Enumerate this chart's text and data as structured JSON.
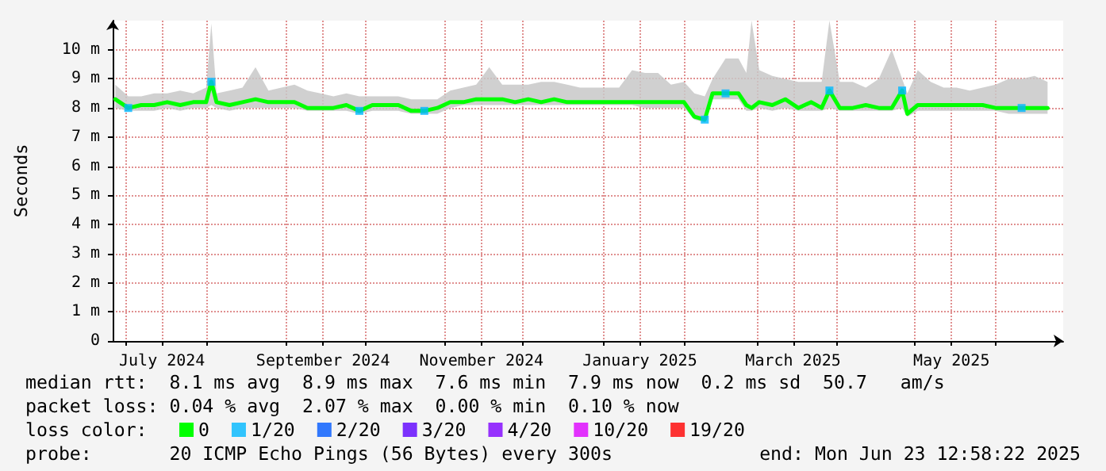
{
  "chart_data": {
    "type": "line",
    "ylabel": "Seconds",
    "legend_title": "loss color:",
    "legend": "bottom",
    "grid": true,
    "xlim": [
      "2024-06-26",
      "2025-06-27"
    ],
    "xticks": [
      {
        "value": "2024-07-01",
        "label": null
      },
      {
        "value": "2024-07-15",
        "label": "July 2024"
      },
      {
        "value": "2024-08-01",
        "label": null
      },
      {
        "value": "2024-09-01",
        "label": null
      },
      {
        "value": "2024-09-15",
        "label": "September 2024"
      },
      {
        "value": "2024-10-01",
        "label": null
      },
      {
        "value": "2024-11-01",
        "label": null
      },
      {
        "value": "2024-11-15",
        "label": "November 2024"
      },
      {
        "value": "2024-12-01",
        "label": null
      },
      {
        "value": "2025-01-01",
        "label": null
      },
      {
        "value": "2025-01-15",
        "label": "January 2025"
      },
      {
        "value": "2025-02-01",
        "label": null
      },
      {
        "value": "2025-03-01",
        "label": null
      },
      {
        "value": "2025-03-15",
        "label": "March 2025"
      },
      {
        "value": "2025-04-01",
        "label": null
      },
      {
        "value": "2025-05-01",
        "label": null
      },
      {
        "value": "2025-05-15",
        "label": "May 2025"
      },
      {
        "value": "2025-06-01",
        "label": null
      }
    ],
    "ylim": [
      0,
      11
    ],
    "yticks": [
      0,
      {
        "value": 1,
        "label": "1 m"
      },
      {
        "value": 2,
        "label": "2 m"
      },
      {
        "value": 3,
        "label": "3 m"
      },
      {
        "value": 4,
        "label": "4 m"
      },
      {
        "value": 5,
        "label": "5 m"
      },
      {
        "value": 6,
        "label": "6 m"
      },
      {
        "value": 7,
        "label": "7 m"
      },
      {
        "value": 8,
        "label": "8 m"
      },
      {
        "value": 9,
        "label": "9 m"
      },
      {
        "value": 10,
        "label": "10 m"
      }
    ],
    "x": [
      "2024-06-27",
      "2024-07-02",
      "2024-07-07",
      "2024-07-12",
      "2024-07-17",
      "2024-07-22",
      "2024-07-27",
      "2024-08-01",
      "2024-08-03",
      "2024-08-05",
      "2024-08-10",
      "2024-08-15",
      "2024-08-20",
      "2024-08-25",
      "2024-08-30",
      "2024-09-04",
      "2024-09-09",
      "2024-09-14",
      "2024-09-19",
      "2024-09-24",
      "2024-09-29",
      "2024-10-04",
      "2024-10-09",
      "2024-10-14",
      "2024-10-19",
      "2024-10-24",
      "2024-10-29",
      "2024-11-03",
      "2024-11-08",
      "2024-11-13",
      "2024-11-18",
      "2024-11-23",
      "2024-11-28",
      "2024-12-03",
      "2024-12-08",
      "2024-12-13",
      "2024-12-18",
      "2024-12-23",
      "2024-12-28",
      "2025-01-02",
      "2025-01-07",
      "2025-01-12",
      "2025-01-17",
      "2025-01-22",
      "2025-01-27",
      "2025-02-01",
      "2025-02-05",
      "2025-02-09",
      "2025-02-12",
      "2025-02-17",
      "2025-02-22",
      "2025-02-25",
      "2025-02-27",
      "2025-03-02",
      "2025-03-07",
      "2025-03-12",
      "2025-03-17",
      "2025-03-22",
      "2025-03-26",
      "2025-03-29",
      "2025-04-02",
      "2025-04-07",
      "2025-04-12",
      "2025-04-17",
      "2025-04-22",
      "2025-04-26",
      "2025-04-28",
      "2025-05-02",
      "2025-05-07",
      "2025-05-12",
      "2025-05-17",
      "2025-05-22",
      "2025-05-27",
      "2025-06-01",
      "2025-06-06",
      "2025-06-11",
      "2025-06-16",
      "2025-06-21"
    ],
    "series": [
      {
        "name": "0",
        "color": "#00ff00",
        "marker": "none",
        "line_style": "solid",
        "values": [
          8.3,
          8.0,
          8.1,
          8.1,
          8.2,
          8.1,
          8.2,
          8.2,
          8.9,
          8.2,
          8.1,
          8.2,
          8.3,
          8.2,
          8.2,
          8.2,
          8.0,
          8.0,
          8.0,
          8.1,
          7.9,
          8.1,
          8.1,
          8.1,
          7.9,
          7.9,
          8.0,
          8.2,
          8.2,
          8.3,
          8.3,
          8.3,
          8.2,
          8.3,
          8.2,
          8.3,
          8.2,
          8.2,
          8.2,
          8.2,
          8.2,
          8.2,
          8.2,
          8.2,
          8.2,
          8.2,
          7.7,
          7.6,
          8.5,
          8.5,
          8.5,
          8.1,
          8.0,
          8.2,
          8.1,
          8.3,
          8.0,
          8.2,
          8.0,
          8.6,
          8.0,
          8.0,
          8.1,
          8.0,
          8.0,
          8.6,
          7.8,
          8.1,
          8.1,
          8.1,
          8.1,
          8.1,
          8.1,
          8.0,
          8.0,
          8.0,
          8.0,
          8.0
        ],
        "lower": [
          8.0,
          7.9,
          7.9,
          7.9,
          8.0,
          7.9,
          8.0,
          8.0,
          8.1,
          8.0,
          7.9,
          8.0,
          8.0,
          8.0,
          8.0,
          8.0,
          7.9,
          7.9,
          7.9,
          7.9,
          7.8,
          7.9,
          7.9,
          7.9,
          7.8,
          7.8,
          7.8,
          8.0,
          8.1,
          8.1,
          8.1,
          8.1,
          8.1,
          8.1,
          8.1,
          8.1,
          8.1,
          8.1,
          8.1,
          8.1,
          8.1,
          8.1,
          8.0,
          8.0,
          8.0,
          8.0,
          7.6,
          7.5,
          8.3,
          8.3,
          8.3,
          7.9,
          7.9,
          8.0,
          7.9,
          8.0,
          7.9,
          7.9,
          7.9,
          8.0,
          7.9,
          7.9,
          7.9,
          7.9,
          7.9,
          8.0,
          7.7,
          7.9,
          7.9,
          7.9,
          7.9,
          7.9,
          7.9,
          7.9,
          7.8,
          7.8,
          7.8,
          7.8
        ],
        "upper": [
          8.8,
          8.4,
          8.4,
          8.5,
          8.5,
          8.6,
          8.5,
          8.7,
          10.9,
          8.5,
          8.6,
          8.7,
          9.4,
          8.6,
          8.7,
          8.8,
          8.6,
          8.5,
          8.4,
          8.5,
          8.4,
          8.4,
          8.4,
          8.4,
          8.3,
          8.3,
          8.3,
          8.6,
          8.7,
          8.8,
          9.4,
          8.8,
          8.8,
          8.8,
          8.9,
          8.9,
          8.8,
          8.7,
          8.7,
          8.7,
          8.7,
          9.3,
          9.2,
          9.2,
          8.8,
          8.9,
          8.5,
          8.4,
          9.0,
          9.7,
          9.7,
          9.2,
          11.0,
          9.3,
          9.1,
          9.0,
          8.9,
          8.9,
          8.9,
          11.0,
          8.9,
          8.9,
          8.7,
          9.0,
          10.0,
          9.0,
          8.5,
          9.3,
          8.9,
          8.7,
          8.7,
          8.6,
          8.7,
          8.8,
          9.0,
          9.0,
          9.1,
          8.9
        ]
      },
      {
        "name": "1/20",
        "color": "#00b8ff",
        "type": "scatter",
        "marker": "square",
        "x": [
          "2024-07-02",
          "2024-08-03",
          "2024-09-29",
          "2024-10-24",
          "2025-02-09",
          "2025-02-17",
          "2025-03-29",
          "2025-04-26",
          "2025-06-11"
        ],
        "values": [
          8.0,
          8.9,
          7.9,
          7.9,
          7.6,
          8.5,
          8.6,
          8.6,
          8.0
        ]
      },
      {
        "name": "2/20",
        "color": "#0059ff",
        "type": "scatter",
        "marker": "square",
        "values": [
          null,
          null,
          null,
          null,
          null,
          null,
          null,
          null,
          null,
          null,
          null,
          null,
          null,
          null,
          null,
          null,
          null,
          null,
          null,
          null,
          null,
          null,
          null,
          null,
          null,
          null,
          null,
          null,
          null,
          null,
          null,
          null,
          null,
          null,
          null,
          null,
          null,
          null,
          null,
          null,
          null,
          null,
          null,
          null,
          null,
          null,
          null,
          null,
          null,
          null,
          null,
          null,
          null,
          null,
          null,
          null,
          null,
          null,
          null,
          null,
          null,
          null,
          null,
          null,
          null,
          null,
          null,
          null,
          null,
          null,
          null,
          null,
          null,
          null,
          null,
          null,
          null,
          null
        ]
      },
      {
        "name": "3/20",
        "color": "#5e00ff",
        "type": "scatter",
        "marker": "square",
        "values": [
          null,
          null,
          null,
          null,
          null,
          null,
          null,
          null,
          null,
          null,
          null,
          null,
          null,
          null,
          null,
          null,
          null,
          null,
          null,
          null,
          null,
          null,
          null,
          null,
          null,
          null,
          null,
          null,
          null,
          null,
          null,
          null,
          null,
          null,
          null,
          null,
          null,
          null,
          null,
          null,
          null,
          null,
          null,
          null,
          null,
          null,
          null,
          null,
          null,
          null,
          null,
          null,
          null,
          null,
          null,
          null,
          null,
          null,
          null,
          null,
          null,
          null,
          null,
          null,
          null,
          null,
          null,
          null,
          null,
          null,
          null,
          null,
          null,
          null,
          null,
          null,
          null,
          null
        ]
      },
      {
        "name": "4/20",
        "color": "#7e00ff",
        "type": "scatter",
        "marker": "square",
        "values": [
          null,
          null,
          null,
          null,
          null,
          null,
          null,
          null,
          null,
          null,
          null,
          null,
          null,
          null,
          null,
          null,
          null,
          null,
          null,
          null,
          null,
          null,
          null,
          null,
          null,
          null,
          null,
          null,
          null,
          null,
          null,
          null,
          null,
          null,
          null,
          null,
          null,
          null,
          null,
          null,
          null,
          null,
          null,
          null,
          null,
          null,
          null,
          null,
          null,
          null,
          null,
          null,
          null,
          null,
          null,
          null,
          null,
          null,
          null,
          null,
          null,
          null,
          null,
          null,
          null,
          null,
          null,
          null,
          null,
          null,
          null,
          null,
          null,
          null,
          null,
          null,
          null,
          null
        ]
      },
      {
        "name": "10/20",
        "color": "#dd00ff",
        "type": "scatter",
        "marker": "square",
        "values": [
          null,
          null,
          null,
          null,
          null,
          null,
          null,
          null,
          null,
          null,
          null,
          null,
          null,
          null,
          null,
          null,
          null,
          null,
          null,
          null,
          null,
          null,
          null,
          null,
          null,
          null,
          null,
          null,
          null,
          null,
          null,
          null,
          null,
          null,
          null,
          null,
          null,
          null,
          null,
          null,
          null,
          null,
          null,
          null,
          null,
          null,
          null,
          null,
          null,
          null,
          null,
          null,
          null,
          null,
          null,
          null,
          null,
          null,
          null,
          null,
          null,
          null,
          null,
          null,
          null,
          null,
          null,
          null,
          null,
          null,
          null,
          null,
          null,
          null,
          null,
          null,
          null,
          null
        ]
      },
      {
        "name": "19/20",
        "color": "#ff0000",
        "type": "scatter",
        "marker": "square",
        "values": [
          null,
          null,
          null,
          null,
          null,
          null,
          null,
          null,
          null,
          null,
          null,
          null,
          null,
          null,
          null,
          null,
          null,
          null,
          null,
          null,
          null,
          null,
          null,
          null,
          null,
          null,
          null,
          null,
          null,
          null,
          null,
          null,
          null,
          null,
          null,
          null,
          null,
          null,
          null,
          null,
          null,
          null,
          null,
          null,
          null,
          null,
          null,
          null,
          null,
          null,
          null,
          null,
          null,
          null,
          null,
          null,
          null,
          null,
          null,
          null,
          null,
          null,
          null,
          null,
          null,
          null,
          null,
          null,
          null,
          null,
          null,
          null,
          null,
          null,
          null,
          null,
          null,
          null
        ]
      }
    ],
    "annotations": [
      "median rtt:  8.1 ms avg  8.9 ms max  7.6 ms min  7.9 ms now  0.2 ms sd  50.7   am/s",
      "packet loss: 0.04 % avg  2.07 % max  0.00 % min  0.10 % now",
      "probe:       20 ICMP Echo Pings (56 Bytes) every 300s",
      "end: Mon Jun 23 12:58:22 2025"
    ]
  }
}
